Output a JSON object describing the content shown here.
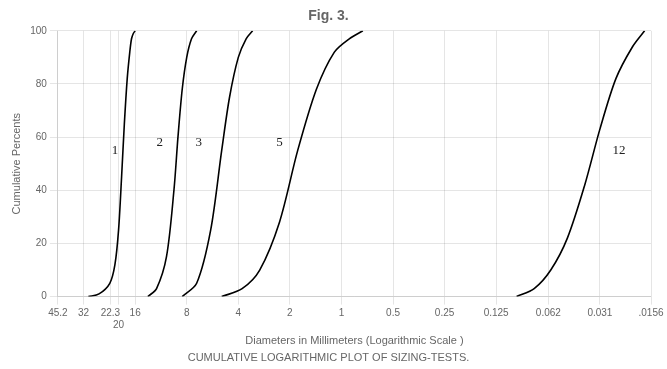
{
  "chart_data": {
    "type": "line",
    "title": "Fig. 3.",
    "subtitle": "CUMULATIVE LOGARITHMIC PLOT OF SIZING-TESTS.",
    "xlabel": "Diameters in Millimeters (Logarithmic Scale )",
    "ylabel": "Cumulative Percents",
    "log": "x",
    "grid": true,
    "color": "#000000",
    "xlim": [
      45.2,
      0.0156
    ],
    "xticks": [
      45.2,
      32,
      22.3,
      20,
      16,
      8,
      4,
      2,
      1,
      0.5,
      0.25,
      0.125,
      0.062,
      0.031,
      {
        "value": 0.0156,
        "label": ".0156"
      }
    ],
    "ylim": [
      0,
      100
    ],
    "yticks": [
      0,
      20,
      40,
      60,
      80,
      100
    ],
    "series": [
      {
        "x": [
          30.0,
          26.0,
          22.5,
          21.0,
          20.0,
          19.2,
          18.5,
          17.8,
          17.2,
          16.8,
          16.4,
          16.0
        ],
        "values": [
          0,
          1,
          5,
          12,
          25,
          45,
          65,
          82,
          92,
          97,
          99,
          100
        ]
      },
      {
        "x": [
          13.5,
          12.0,
          10.5,
          9.5,
          9.0,
          8.5,
          8.0,
          7.5,
          7.0
        ],
        "values": [
          0,
          3,
          15,
          40,
          60,
          78,
          90,
          97,
          100
        ]
      },
      {
        "x": [
          8.5,
          7.0,
          5.8,
          5.0,
          4.5,
          4.0,
          3.6,
          3.3
        ],
        "values": [
          0,
          5,
          25,
          55,
          75,
          90,
          97,
          100
        ]
      },
      {
        "x": [
          5.0,
          3.8,
          3.0,
          2.3,
          1.8,
          1.4,
          1.1,
          0.9,
          0.75
        ],
        "values": [
          0,
          3,
          10,
          28,
          55,
          78,
          92,
          97,
          100
        ]
      },
      {
        "x": [
          0.095,
          0.075,
          0.06,
          0.048,
          0.038,
          0.031,
          0.025,
          0.02,
          0.017
        ],
        "values": [
          0,
          3,
          10,
          22,
          42,
          63,
          82,
          94,
          100
        ]
      }
    ],
    "annotations": [
      {
        "text": "1",
        "x": 21.0,
        "y": 55
      },
      {
        "text": "2",
        "x": 11.5,
        "y": 58
      },
      {
        "text": "3",
        "x": 6.8,
        "y": 58
      },
      {
        "text": "5",
        "x": 2.3,
        "y": 58
      },
      {
        "text": "12",
        "x": 0.024,
        "y": 55
      }
    ]
  }
}
